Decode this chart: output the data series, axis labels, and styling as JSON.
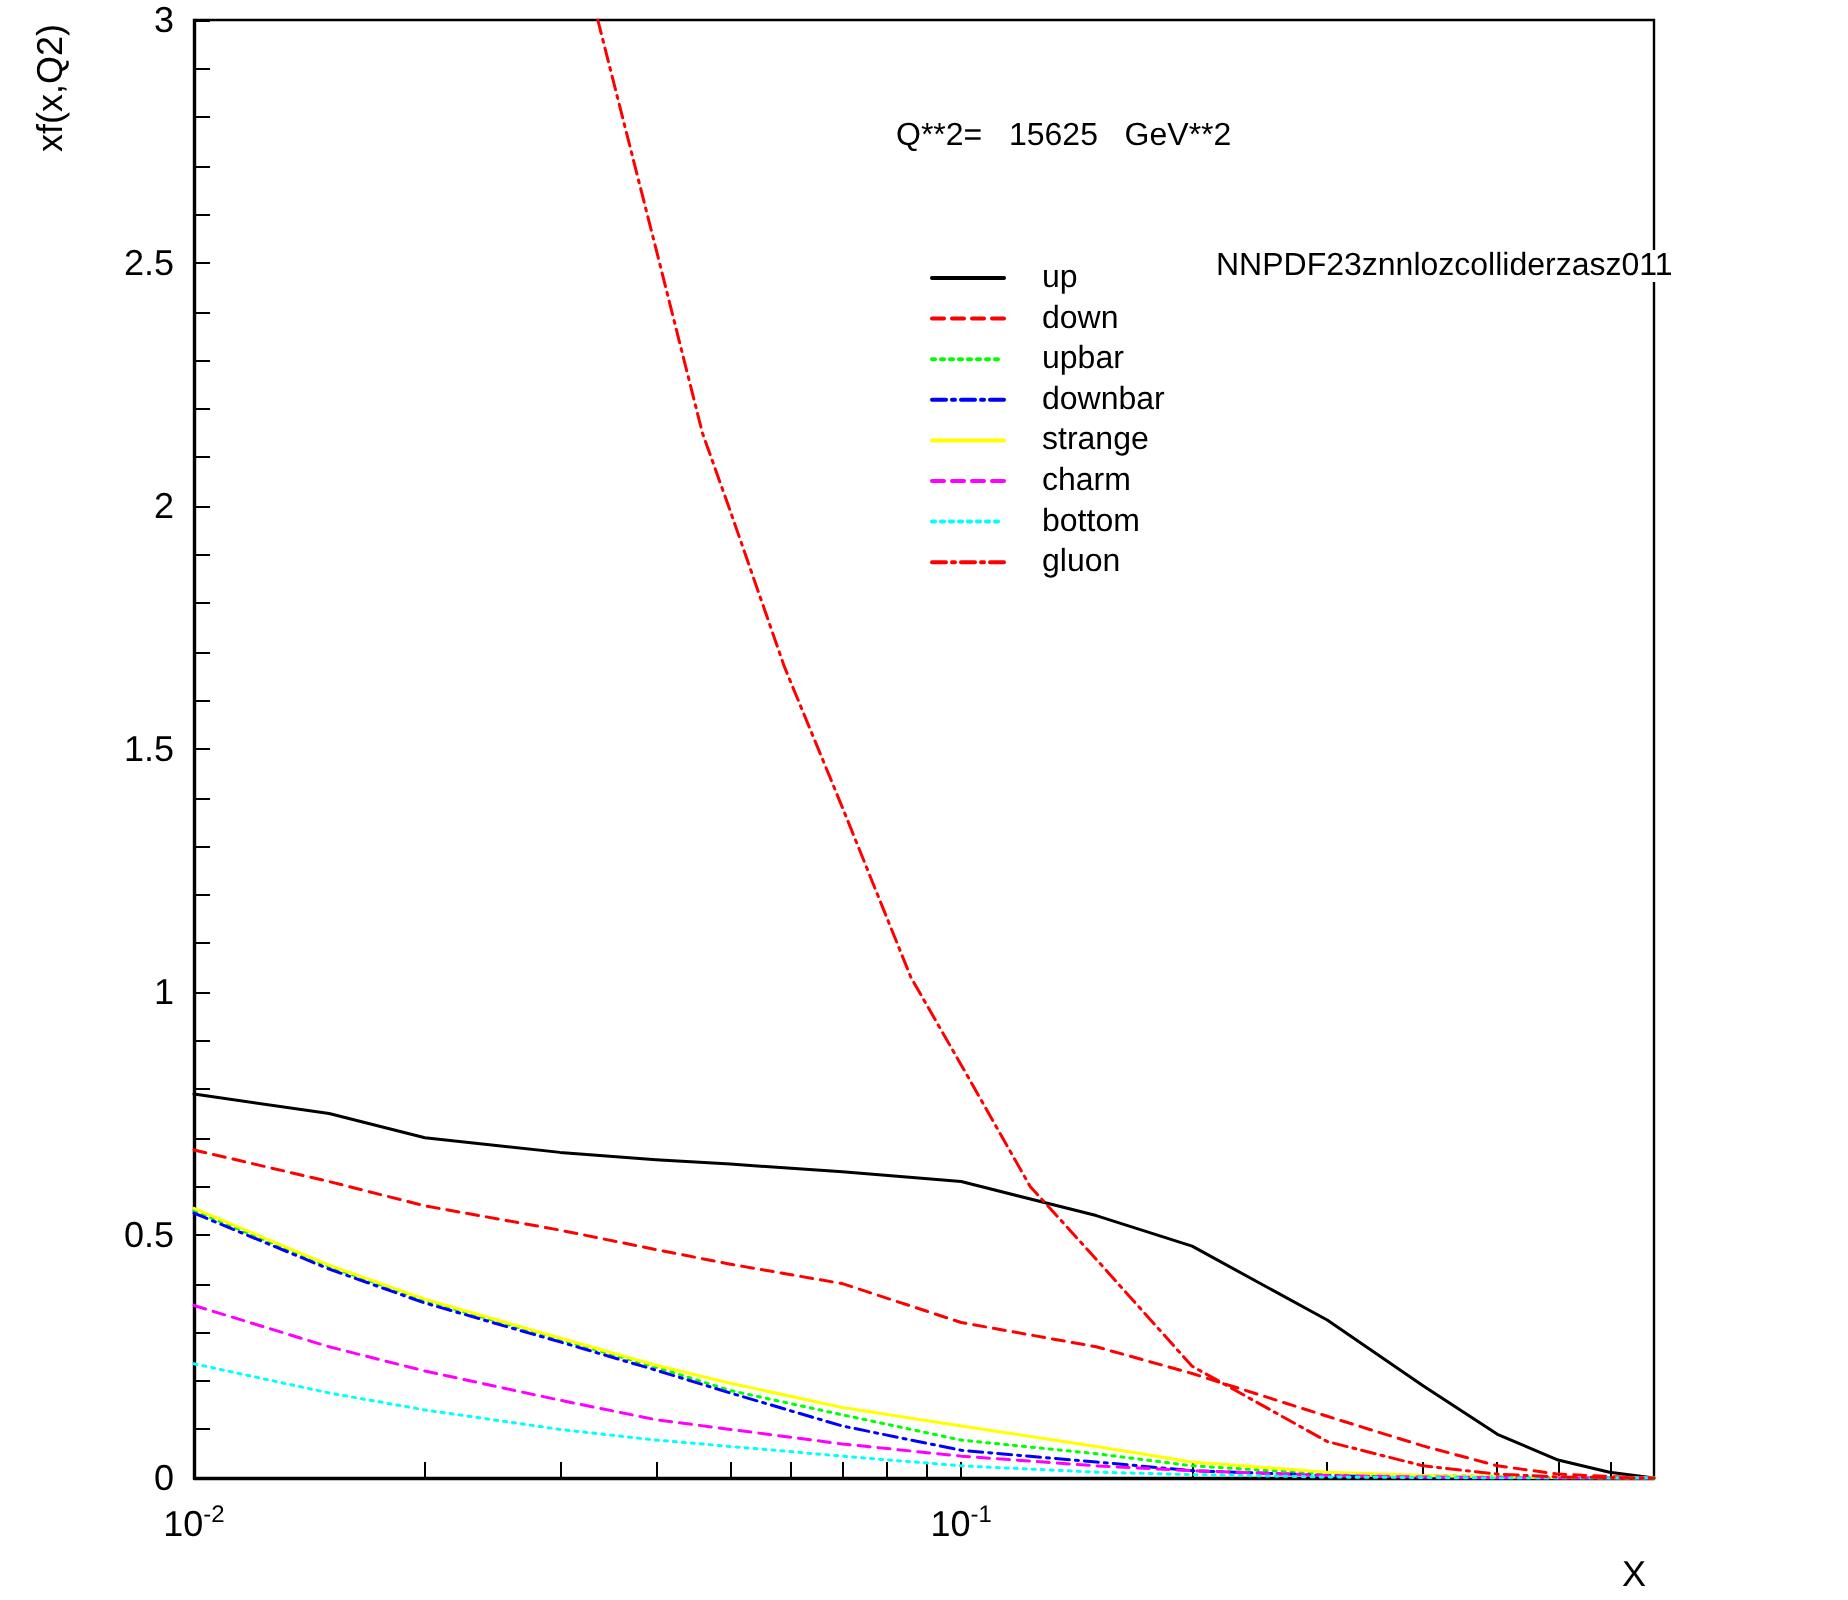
{
  "chart_data": {
    "type": "line",
    "ylabel": "xf(x,Q2)",
    "xlabel": "X",
    "annotations": [
      "Q**2=   15625   GeV**2",
      "NNPDF23znnlozcolliderzasz011"
    ],
    "log": "x",
    "xlim": [
      0.01,
      0.8
    ],
    "ylim": [
      0,
      3
    ],
    "xticks": [
      {
        "value": 0.01,
        "label": "10$^{-2}$"
      },
      {
        "value": 0.02,
        "label": null
      },
      {
        "value": 0.03,
        "label": null
      },
      {
        "value": 0.04,
        "label": null
      },
      {
        "value": 0.05,
        "label": null
      },
      {
        "value": 0.06,
        "label": null
      },
      {
        "value": 0.07,
        "label": null
      },
      {
        "value": 0.08,
        "label": null
      },
      {
        "value": 0.09,
        "label": null
      },
      {
        "value": 0.1,
        "label": "10$^{-1}$"
      },
      {
        "value": 0.2,
        "label": null
      },
      {
        "value": 0.3,
        "label": null
      },
      {
        "value": 0.4,
        "label": null
      },
      {
        "value": 0.5,
        "label": null
      },
      {
        "value": 0.6,
        "label": null
      },
      {
        "value": 0.7,
        "label": null
      }
    ],
    "yticks": [
      0,
      {
        "value": 0.1,
        "label": null
      },
      {
        "value": 0.2,
        "label": null
      },
      {
        "value": 0.3,
        "label": null
      },
      {
        "value": 0.4,
        "label": null
      },
      0.5,
      {
        "value": 0.6,
        "label": null
      },
      {
        "value": 0.7,
        "label": null
      },
      {
        "value": 0.8,
        "label": null
      },
      {
        "value": 0.9,
        "label": null
      },
      1,
      {
        "value": 1.1,
        "label": null
      },
      {
        "value": 1.2,
        "label": null
      },
      {
        "value": 1.3,
        "label": null
      },
      {
        "value": 1.4,
        "label": null
      },
      1.5,
      {
        "value": 1.6,
        "label": null
      },
      {
        "value": 1.7,
        "label": null
      },
      {
        "value": 1.8,
        "label": null
      },
      {
        "value": 1.9,
        "label": null
      },
      2,
      {
        "value": 2.1,
        "label": null
      },
      {
        "value": 2.2,
        "label": null
      },
      {
        "value": 2.3,
        "label": null
      },
      {
        "value": 2.4,
        "label": null
      },
      2.5,
      {
        "value": 2.6,
        "label": null
      },
      {
        "value": 2.7,
        "label": null
      },
      {
        "value": 2.8,
        "label": null
      },
      {
        "value": 2.9,
        "label": null
      },
      3
    ],
    "grid": false,
    "legend": "top right",
    "marker": "none",
    "x": [
      0.01,
      0.015,
      0.02,
      0.03,
      0.04,
      0.05,
      0.07,
      0.1,
      0.15,
      0.2,
      0.3,
      0.4,
      0.5,
      0.6,
      0.7,
      0.8
    ],
    "series": [
      {
        "name": "up",
        "color": "#000000",
        "line_style": "solid",
        "values": [
          0.79,
          0.75,
          0.7,
          0.67,
          0.655,
          0.646,
          0.63,
          0.61,
          0.54,
          0.477,
          0.325,
          0.19,
          0.09,
          0.037,
          0.012,
          0
        ]
      },
      {
        "name": "down",
        "color": "#ff0000",
        "line_style": "dashed",
        "values": [
          0.675,
          0.61,
          0.56,
          0.51,
          0.47,
          0.44,
          0.4,
          0.32,
          0.27,
          0.215,
          0.127,
          0.066,
          0.025,
          0.008,
          0.003,
          0
        ]
      },
      {
        "name": "upbar",
        "color": "#00ff00",
        "line_style": "dotted",
        "values": [
          0.55,
          0.435,
          0.365,
          0.285,
          0.228,
          0.18,
          0.13,
          0.078,
          0.05,
          0.025,
          0.008,
          null,
          null,
          null,
          0,
          0
        ]
      },
      {
        "name": "downbar",
        "color": "#0000ff",
        "line_style": "dashdot",
        "values": [
          0.545,
          0.43,
          0.36,
          0.28,
          0.222,
          0.175,
          0.107,
          0.057,
          0.033,
          0.015,
          0.005,
          0.002,
          null,
          null,
          0,
          0
        ]
      },
      {
        "name": "strange",
        "color": "#ffff00",
        "line_style": "solid",
        "values": [
          0.555,
          0.438,
          0.368,
          0.288,
          0.232,
          0.195,
          0.145,
          0.107,
          0.065,
          0.033,
          0.012,
          0.005,
          0.002,
          0.001,
          0,
          0
        ]
      },
      {
        "name": "charm",
        "color": "#ff00ff",
        "line_style": "dashed",
        "values": [
          0.355,
          0.27,
          0.22,
          0.16,
          0.12,
          0.1,
          0.07,
          0.045,
          0.025,
          0.015,
          0.005,
          0.002,
          0.001,
          0,
          0,
          0
        ]
      },
      {
        "name": "bottom",
        "color": "#00ffff",
        "line_style": "dotted",
        "values": [
          0.235,
          0.175,
          0.14,
          0.1,
          0.078,
          0.065,
          0.045,
          0.025,
          0.012,
          0.007,
          0.002,
          0.001,
          0,
          0,
          0,
          0
        ]
      },
      {
        "name": "gluon",
        "color": "#ff0000",
        "line_style": "dashdot",
        "x": [
          0.0336,
          0.04,
          0.046,
          0.05,
          0.0588,
          0.07,
          0.086,
          0.1,
          0.123,
          0.15,
          0.2,
          0.3,
          0.4,
          0.5,
          0.6,
          0.8
        ],
        "values": [
          3.0,
          2.53,
          2.15,
          1.99,
          1.67,
          1.38,
          1.03,
          0.85,
          0.6,
          0.45,
          0.23,
          0.075,
          0.025,
          0.008,
          0.002,
          0
        ]
      }
    ]
  }
}
